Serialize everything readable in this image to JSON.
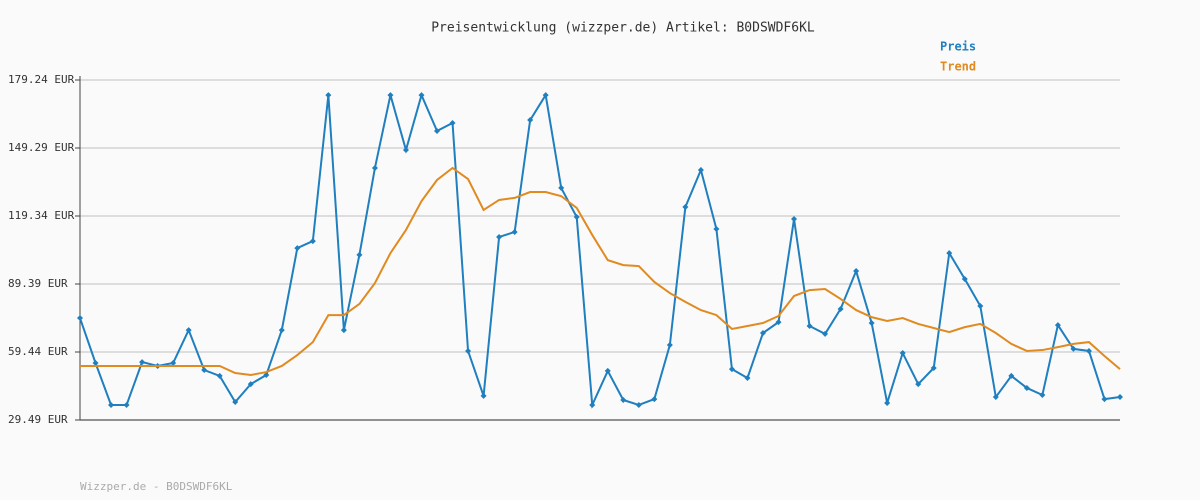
{
  "chart_data": {
    "type": "line",
    "title": "Preisentwicklung (wizzper.de) Artikel: B0DSWDF6KL",
    "footer": "Wizzper.de - B0DSWDF6KL",
    "series": [
      {
        "name": "Preis",
        "color": "#1f7fbf",
        "markers": true,
        "values": [
          74.4,
          54.6,
          36.1,
          36.1,
          55.0,
          53.3,
          54.6,
          69.1,
          51.5,
          48.9,
          37.4,
          45.3,
          49.3,
          69.1,
          105.2,
          108.3,
          172.6,
          69.1,
          102.2,
          140.5,
          172.6,
          148.4,
          172.6,
          156.8,
          160.3,
          59.9,
          40.1,
          110.1,
          112.3,
          161.6,
          172.6,
          131.7,
          118.9,
          36.1,
          51.1,
          38.3,
          36.1,
          38.7,
          62.5,
          123.3,
          139.6,
          113.6,
          51.9,
          48.0,
          67.8,
          72.6,
          118.0,
          70.9,
          67.4,
          78.4,
          95.1,
          72.2,
          37.0,
          59.0,
          45.3,
          52.4,
          103.0,
          91.6,
          79.7,
          39.6,
          48.9,
          43.6,
          40.5,
          71.3,
          60.8,
          59.9,
          38.7,
          39.6
        ]
      },
      {
        "name": "Trend",
        "color": "#e08a20",
        "markers": false,
        "values": [
          53.3,
          53.3,
          53.3,
          53.3,
          53.3,
          53.3,
          53.3,
          53.3,
          53.3,
          53.3,
          50.2,
          49.3,
          50.6,
          53.3,
          58.1,
          63.8,
          75.7,
          75.7,
          80.6,
          89.8,
          103.0,
          113.2,
          125.9,
          135.2,
          140.5,
          135.6,
          122.0,
          126.4,
          127.3,
          129.9,
          129.9,
          128.1,
          122.9,
          111.0,
          99.9,
          97.7,
          97.3,
          90.3,
          85.4,
          81.5,
          77.9,
          75.7,
          69.6,
          70.9,
          72.2,
          75.3,
          84.1,
          86.7,
          87.2,
          82.8,
          77.9,
          74.8,
          73.1,
          74.4,
          71.8,
          70.0,
          68.2,
          70.4,
          71.8,
          67.8,
          63.0,
          59.9,
          60.3,
          61.6,
          63.0,
          63.8,
          57.7,
          51.9
        ]
      }
    ],
    "ylim": [
      29.49,
      179.24
    ],
    "yticks": [
      {
        "value": 29.49,
        "label": "29.49 EUR"
      },
      {
        "value": 59.44,
        "label": "59.44 EUR"
      },
      {
        "value": 89.39,
        "label": "89.39 EUR"
      },
      {
        "value": 119.34,
        "label": "119.34 EUR"
      },
      {
        "value": 149.29,
        "label": "149.29 EUR"
      },
      {
        "value": 179.24,
        "label": "179.24 EUR"
      }
    ],
    "grid": true
  }
}
